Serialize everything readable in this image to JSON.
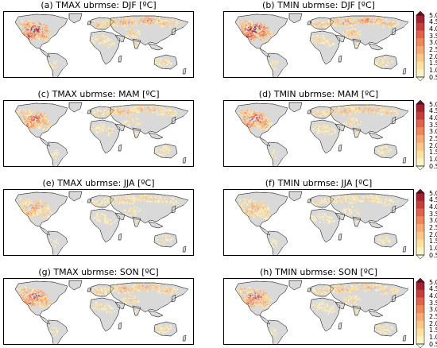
{
  "panels": [
    {
      "id": "a",
      "title": "(a) TMAX ubrmse: DJF [ºC]",
      "col": 0,
      "row": 0,
      "intensity": 0.95
    },
    {
      "id": "b",
      "title": "(b) TMIN ubrmse: DJF [ºC]",
      "col": 1,
      "row": 0,
      "intensity": 1.0
    },
    {
      "id": "c",
      "title": "(c) TMAX ubrmse: MAM [ºC]",
      "col": 0,
      "row": 1,
      "intensity": 0.75
    },
    {
      "id": "d",
      "title": "(d) TMIN ubrmse: MAM [ºC]",
      "col": 1,
      "row": 1,
      "intensity": 0.8
    },
    {
      "id": "e",
      "title": "(e) TMAX ubrmse: JJA [ºC]",
      "col": 0,
      "row": 2,
      "intensity": 0.55
    },
    {
      "id": "f",
      "title": "(f) TMIN ubrmse: JJA [ºC]",
      "col": 1,
      "row": 2,
      "intensity": 0.5
    },
    {
      "id": "g",
      "title": "(g) TMAX ubrmse: SON [ºC]",
      "col": 0,
      "row": 3,
      "intensity": 0.8
    },
    {
      "id": "h",
      "title": "(h) TMIN ubrmse: SON [ºC]",
      "col": 1,
      "row": 3,
      "intensity": 0.75
    }
  ],
  "colorbar": {
    "ticks": [
      "5.00",
      "4.50",
      "4.00",
      "3.50",
      "3.00",
      "2.50",
      "2.00",
      "1.50",
      "1.00",
      "0.50"
    ],
    "colors": [
      "#fffef5",
      "#fdf3c3",
      "#fde2a3",
      "#fcc88a",
      "#f9a872",
      "#f1865d",
      "#e0624c",
      "#c63d3a",
      "#a2222d",
      "#731122"
    ],
    "extend": "both"
  },
  "colors": {
    "land": "#d9d9d9",
    "ocean": "#ffffff",
    "border": "#333333"
  }
}
